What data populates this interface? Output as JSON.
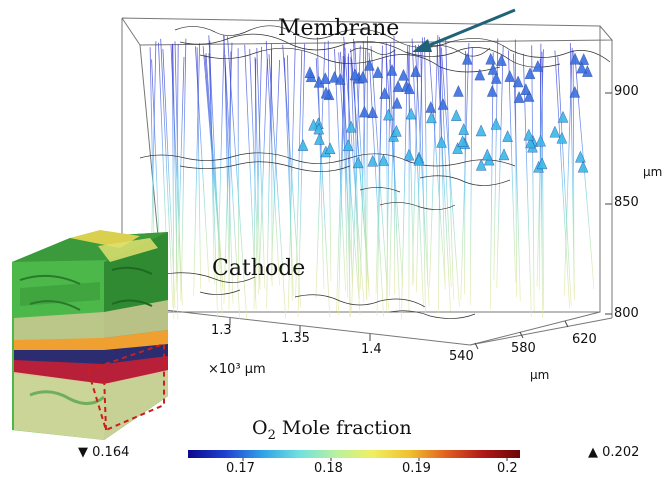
{
  "labels": {
    "membrane": "Membrane",
    "cathode": "Cathode",
    "colorbar_title_main": "O",
    "colorbar_title_sub": "2",
    "colorbar_title_rest": " Mole fraction",
    "min_marker_glyph": "▼",
    "min_value": "0.164",
    "max_marker_glyph": "▲",
    "max_value": "0.202",
    "unit_um": "μm",
    "x_axis_prefix": "×10³ μm"
  },
  "axes": {
    "z_ticks": [
      "900",
      "850",
      "800"
    ],
    "x_ticks": [
      "1.3",
      "1.35",
      "1.4"
    ],
    "y_ticks": [
      "540",
      "580",
      "620"
    ]
  },
  "colorbar": {
    "ticks": [
      "0.17",
      "0.18",
      "0.19",
      "0.2"
    ],
    "colors": [
      "#0a0a8c",
      "#1f3fd0",
      "#2fa0e8",
      "#6fe0e0",
      "#b8f0a0",
      "#f0f060",
      "#f0c030",
      "#e06020",
      "#b01818",
      "#6a0808"
    ]
  },
  "colors": {
    "arrow": "#1f6378",
    "cone_blue": "#3a6fe0",
    "cone_cyan": "#38b8e8",
    "inset_green": "#3fae3a"
  }
}
